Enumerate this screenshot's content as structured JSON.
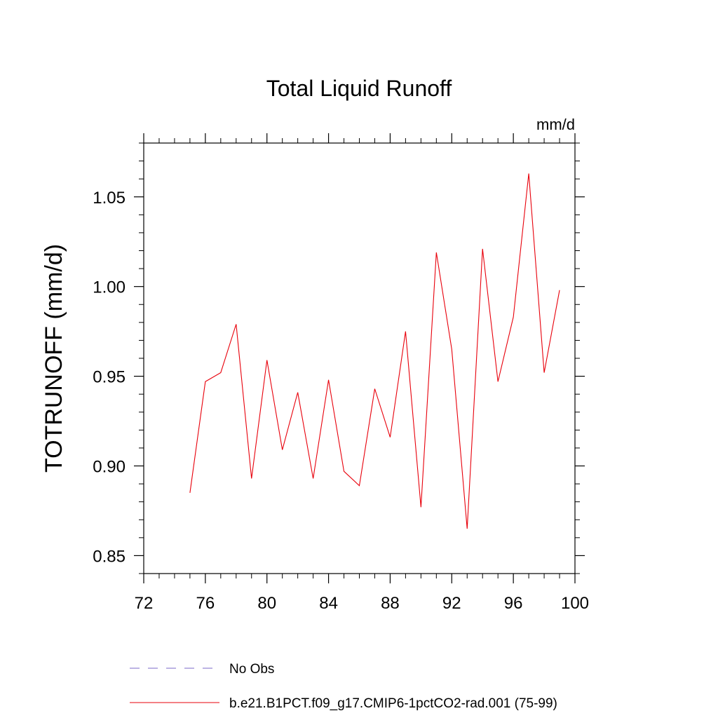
{
  "chart_data": {
    "type": "line",
    "title": "Total Liquid Runoff",
    "units_label": "mm/d",
    "ylabel": "TOTRUNOFF  (mm/d)",
    "xlabel": "",
    "xlim": [
      72,
      100
    ],
    "ylim": [
      0.84,
      1.08
    ],
    "x_ticks": [
      72,
      76,
      80,
      84,
      88,
      92,
      96,
      100
    ],
    "x_tick_labels": [
      "72",
      "76",
      "80",
      "84",
      "88",
      "92",
      "96",
      "100"
    ],
    "y_ticks": [
      0.85,
      0.9,
      0.95,
      1.0,
      1.05
    ],
    "y_tick_labels": [
      "0.85",
      "0.90",
      "0.95",
      "1.00",
      "1.05"
    ],
    "grid": false,
    "legend_position": "bottom",
    "series": [
      {
        "name": "No Obs",
        "color": "#7b68c8",
        "dash": "dashed",
        "x": [],
        "y": []
      },
      {
        "name": "b.e21.B1PCT.f09_g17.CMIP6-1pctCO2-rad.001 (75-99)",
        "color": "#e8000b",
        "dash": "solid",
        "x": [
          75,
          76,
          77,
          78,
          79,
          80,
          81,
          82,
          83,
          84,
          85,
          86,
          87,
          88,
          89,
          90,
          91,
          92,
          93,
          94,
          95,
          96,
          97,
          98,
          99
        ],
        "y": [
          0.885,
          0.947,
          0.952,
          0.979,
          0.893,
          0.959,
          0.909,
          0.941,
          0.893,
          0.948,
          0.897,
          0.889,
          0.943,
          0.916,
          0.975,
          0.877,
          1.019,
          0.965,
          0.865,
          1.021,
          0.947,
          0.983,
          1.063,
          0.952,
          0.998
        ]
      }
    ]
  }
}
